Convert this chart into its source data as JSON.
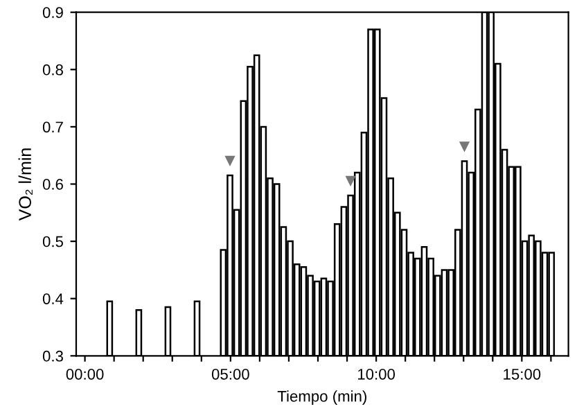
{
  "chart_data": {
    "type": "bar",
    "xlabel": "Tiempo (min)",
    "ylabel": "VO₂ l/min",
    "x": [
      0.85,
      1.85,
      2.85,
      3.85,
      4.75,
      4.98,
      5.21,
      5.44,
      5.67,
      5.9,
      6.13,
      6.36,
      6.59,
      6.82,
      7.05,
      7.28,
      7.51,
      7.74,
      7.97,
      8.2,
      8.43,
      8.66,
      8.89,
      9.12,
      9.35,
      9.58,
      9.81,
      10.04,
      10.27,
      10.5,
      10.73,
      10.96,
      11.19,
      11.42,
      11.65,
      11.88,
      12.11,
      12.34,
      12.57,
      12.8,
      13.03,
      13.26,
      13.49,
      13.72,
      13.95,
      14.18,
      14.41,
      14.64,
      14.87,
      15.1,
      15.33,
      15.56,
      15.79,
      16.02
    ],
    "series": [
      {
        "color": "#ffffff",
        "values": [
          0.395,
          0.38,
          0.385,
          0.395,
          0.485,
          0.615,
          0.555,
          0.745,
          0.805,
          0.825,
          0.7,
          0.61,
          0.6,
          0.525,
          0.5,
          0.46,
          0.455,
          0.44,
          0.43,
          0.435,
          0.43,
          0.53,
          0.56,
          0.58,
          0.62,
          0.69,
          0.87,
          0.87,
          0.75,
          0.61,
          0.55,
          0.52,
          0.48,
          0.47,
          0.49,
          0.47,
          0.44,
          0.45,
          0.45,
          0.52,
          0.64,
          0.62,
          0.73,
          0.9,
          0.9,
          0.81,
          0.66,
          0.63,
          0.63,
          0.5,
          0.51,
          0.5,
          0.48,
          0.48
        ]
      },
      {
        "type": "scatter",
        "color": "#777777",
        "marker": "triangle",
        "x": [
          4.98,
          9.12,
          13.03
        ],
        "values": [
          0.64,
          0.605,
          0.665
        ]
      }
    ],
    "xlim": [
      -0.3,
      16.6
    ],
    "ylim": [
      0.3,
      0.9
    ],
    "xticks": [
      {
        "value": 0,
        "label": "00:00"
      },
      {
        "value": 1,
        "label": null
      },
      {
        "value": 2,
        "label": null
      },
      {
        "value": 3,
        "label": null
      },
      {
        "value": 4,
        "label": null
      },
      {
        "value": 5,
        "label": "05:00"
      },
      {
        "value": 6,
        "label": null
      },
      {
        "value": 7,
        "label": null
      },
      {
        "value": 8,
        "label": null
      },
      {
        "value": 9,
        "label": null
      },
      {
        "value": 10,
        "label": "10:00"
      },
      {
        "value": 11,
        "label": null
      },
      {
        "value": 12,
        "label": null
      },
      {
        "value": 13,
        "label": null
      },
      {
        "value": 14,
        "label": null
      },
      {
        "value": 15,
        "label": "15:00"
      },
      {
        "value": 16,
        "label": null
      }
    ],
    "yticks": [
      0.3,
      0.4,
      0.5,
      0.6,
      0.7,
      0.8,
      0.9
    ],
    "grid": false,
    "legend": false
  }
}
